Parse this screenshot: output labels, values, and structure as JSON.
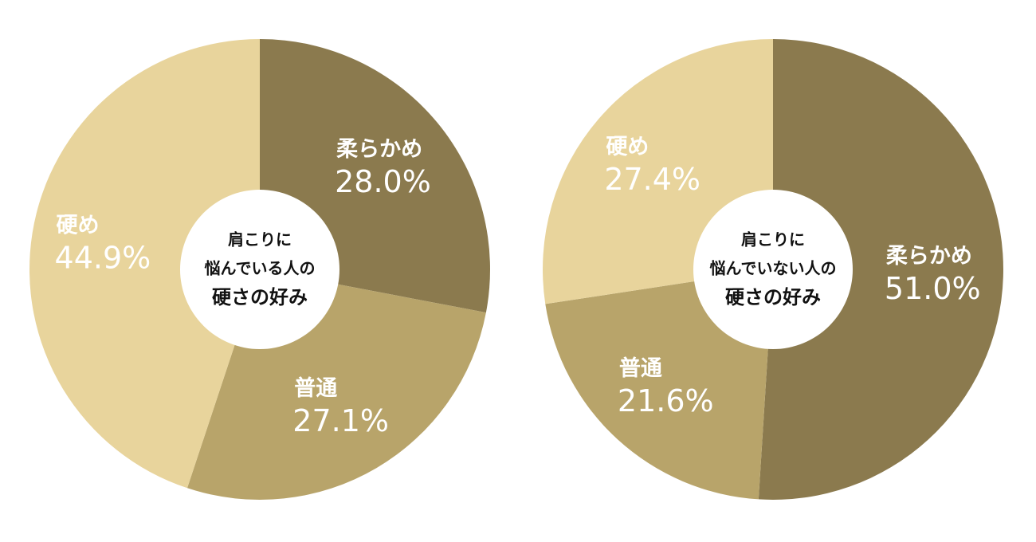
{
  "chart_data": [
    {
      "type": "pie",
      "title_lines": [
        "肩こりに",
        "悩んでいる人の",
        "硬さの好み"
      ],
      "categories": [
        "柔らかめ",
        "普通",
        "硬め"
      ],
      "values": [
        28.0,
        27.1,
        44.9
      ],
      "value_labels": [
        "28.0%",
        "27.1%",
        "44.9%"
      ],
      "colors": [
        "#8b7a4e",
        "#b8a46a",
        "#e8d49c"
      ]
    },
    {
      "type": "pie",
      "title_lines": [
        "肩こりに",
        "悩んでいない人の",
        "硬さの好み"
      ],
      "categories": [
        "柔らかめ",
        "普通",
        "硬め"
      ],
      "values": [
        51.0,
        21.6,
        27.4
      ],
      "value_labels": [
        "51.0%",
        "21.6%",
        "27.4%"
      ],
      "colors": [
        "#8b7a4e",
        "#b8a46a",
        "#e8d49c"
      ]
    }
  ]
}
